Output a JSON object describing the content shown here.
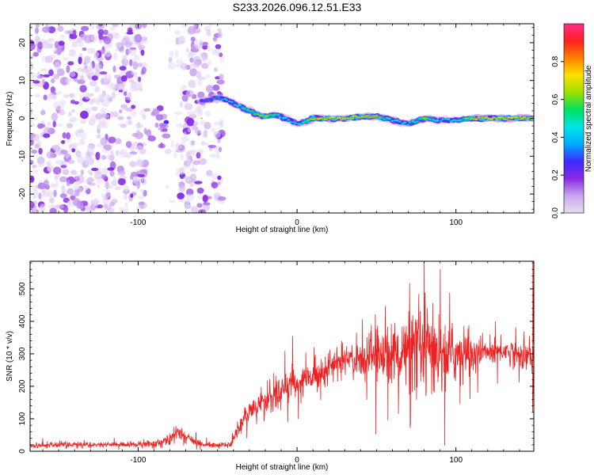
{
  "title": "S233.2026.096.12.51.E33",
  "chart_data": [
    {
      "type": "heatmap",
      "name": "spectrogram",
      "xlabel": "Height of straight line (km)",
      "ylabel": "Frequency (Hz)",
      "xlim": [
        -168,
        149
      ],
      "ylim": [
        -25,
        25
      ],
      "xticks": [
        -100,
        0,
        100
      ],
      "xtick_labels": [
        "-100",
        "0",
        "100"
      ],
      "yticks": [
        -20,
        -10,
        0,
        10,
        20
      ],
      "ytick_labels": [
        "-20",
        "-10",
        "0",
        "10",
        "20"
      ],
      "colorbar": {
        "label": "Normalized spectral amplitude",
        "range": [
          0,
          1
        ],
        "ticks": [
          0.0,
          0.2,
          0.4,
          0.6,
          0.8
        ],
        "tick_labels": [
          "0.0",
          "0.2",
          "0.4",
          "0.6",
          "0.8"
        ],
        "colors": [
          "#e8ddf6",
          "#c9a6ee",
          "#8a2be2",
          "#3d2bff",
          "#00aaff",
          "#00e5e5",
          "#00e060",
          "#9be000",
          "#ffe000",
          "#ff8000",
          "#ff2020",
          "#ff2d8a"
        ]
      },
      "ridge": {
        "x": [
          -60,
          -50,
          -45,
          -40,
          -35,
          -30,
          -25,
          -20,
          -15,
          -10,
          -5,
          0,
          5,
          10,
          20,
          30,
          40,
          50,
          60,
          70,
          80,
          90,
          100,
          110,
          120,
          130,
          140,
          149
        ],
        "y": [
          4.5,
          5.5,
          5.0,
          4.0,
          3.0,
          2.0,
          1.0,
          0.5,
          0.8,
          0.5,
          -0.5,
          -1.5,
          -1.0,
          0.0,
          0.0,
          0.0,
          0.5,
          0.5,
          -0.5,
          -1.5,
          0.0,
          -0.5,
          -0.5,
          0.0,
          0.0,
          0.0,
          0.0,
          0.0
        ],
        "amplitude": [
          0.4,
          0.45,
          0.55,
          0.6,
          0.65,
          0.7,
          0.75,
          0.8,
          0.7,
          0.6,
          0.6,
          0.5,
          0.7,
          0.85,
          0.9,
          0.9,
          0.85,
          0.8,
          0.6,
          0.55,
          0.8,
          0.55,
          0.6,
          0.85,
          0.9,
          0.9,
          0.88,
          0.85
        ]
      },
      "noise_regions": [
        {
          "x_range": [
            -168,
            -95
          ],
          "y_range": [
            -25,
            25
          ],
          "density": 1.0,
          "amp_range": [
            0.0,
            0.2
          ]
        },
        {
          "x_range": [
            -95,
            -82
          ],
          "y_range": [
            -8,
            5
          ],
          "density": 0.7,
          "amp_range": [
            0.1,
            0.3
          ]
        },
        {
          "x_range": [
            -82,
            -74
          ],
          "y_range": [
            -25,
            25
          ],
          "density": 0.25,
          "amp_range": [
            0.0,
            0.1
          ]
        },
        {
          "x_range": [
            -74,
            -47
          ],
          "y_range": [
            -25,
            25
          ],
          "density": 0.9,
          "amp_range": [
            0.0,
            0.2
          ]
        }
      ]
    },
    {
      "type": "line",
      "name": "snr",
      "xlabel": "Height of straight line (km)",
      "ylabel": "SNR (10 * v/v)",
      "xlim": [
        -168,
        149
      ],
      "ylim": [
        0,
        585
      ],
      "xticks": [
        -100,
        0,
        100
      ],
      "xtick_labels": [
        "-100",
        "0",
        "100"
      ],
      "yticks": [
        0,
        100,
        200,
        300,
        400,
        500
      ],
      "ytick_labels": [
        "0",
        "100",
        "200",
        "300",
        "400",
        "500"
      ],
      "color": "#ee2222",
      "trend": {
        "x": [
          -168,
          -150,
          -110,
          -90,
          -80,
          -75,
          -70,
          -60,
          -50,
          -42,
          -38,
          -32,
          -25,
          -15,
          -5,
          0,
          10,
          20,
          30,
          40,
          60,
          80,
          90,
          100,
          110,
          120,
          130,
          140,
          149
        ],
        "y": [
          18,
          20,
          20,
          22,
          35,
          60,
          45,
          22,
          18,
          22,
          60,
          110,
          140,
          170,
          200,
          210,
          230,
          260,
          280,
          290,
          300,
          305,
          300,
          300,
          300,
          305,
          310,
          300,
          290
        ],
        "noise": [
          8,
          8,
          8,
          10,
          15,
          25,
          15,
          8,
          8,
          10,
          25,
          35,
          40,
          45,
          45,
          45,
          45,
          40,
          40,
          60,
          90,
          120,
          110,
          80,
          60,
          40,
          35,
          40,
          60
        ]
      }
    }
  ]
}
